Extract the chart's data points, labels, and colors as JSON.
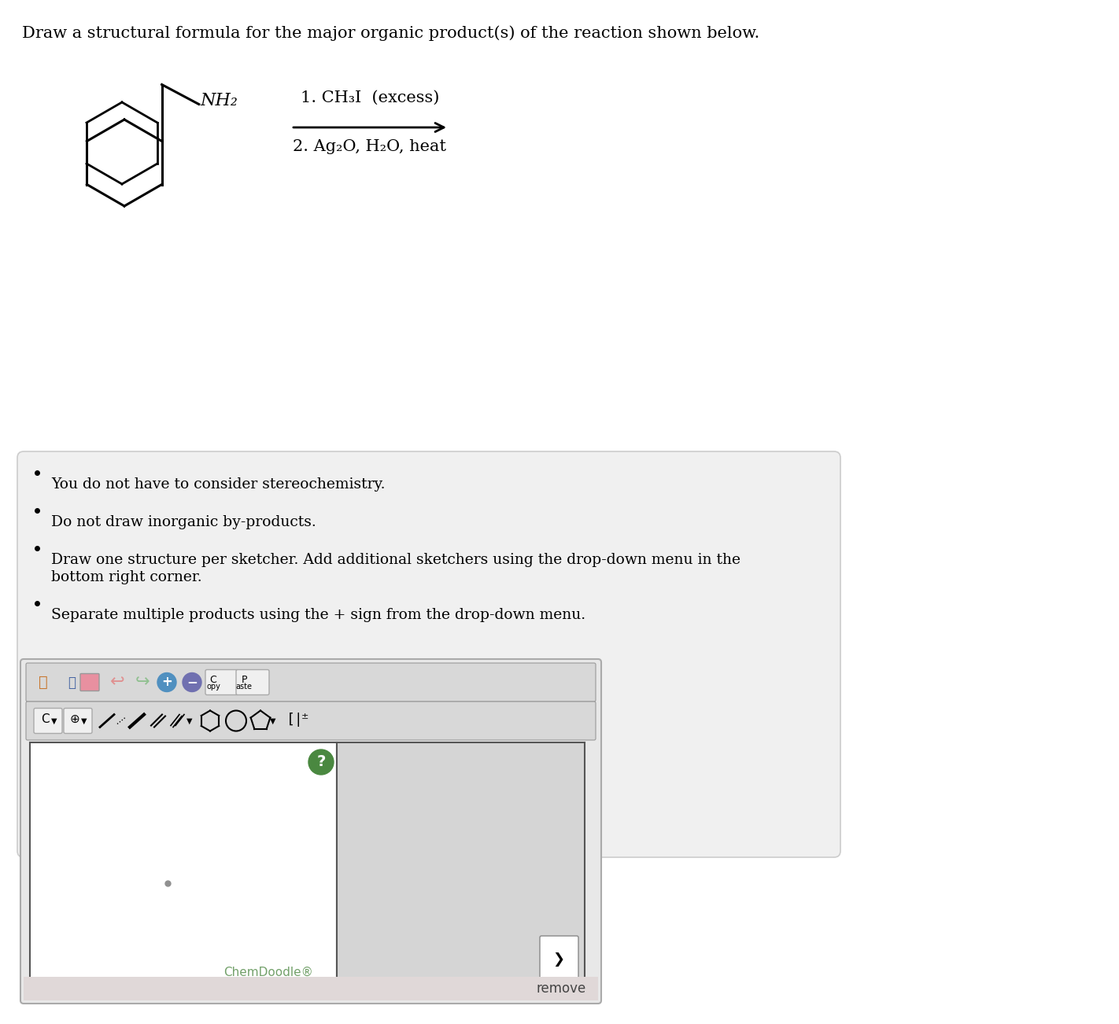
{
  "title_text": "Draw a structural formula for the major organic product(s) of the reaction shown below.",
  "title_fontsize": 15,
  "background_color": "#ffffff",
  "bullet_box_color": "#f0f0f0",
  "bullet_items": [
    "You do not have to consider stereochemistry.",
    "Do not draw inorganic by-products.",
    "Draw one structure per sketcher. Add additional sketchers using the drop-down menu in the\nbottom right corner.",
    "Separate multiple products using the + sign from the drop-down menu."
  ],
  "reaction_label1": "1. CH₃I  (excess)",
  "reaction_label2": "2. Ag₂O, H₂O, heat",
  "nh2_label": "NH₂",
  "chemdoodle_label": "ChemDoodle®",
  "remove_label": "remove",
  "toolbar_bg": "#e8e8e8",
  "sketcher_bg": "#ffffff",
  "sketcher_right_bg": "#e0e0e0",
  "sketcher_border": "#888888"
}
